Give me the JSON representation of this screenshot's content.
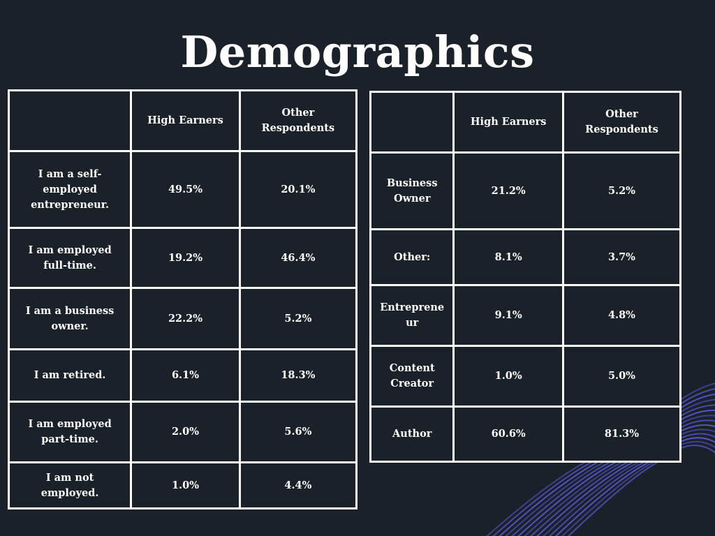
{
  "slide": {
    "title": "Demographics",
    "colors": {
      "background": "#1b2128",
      "accent": "#5a5ce0",
      "text": "#ffffff"
    }
  },
  "chart_data": [
    {
      "type": "table",
      "columns": [
        "",
        "High Earners",
        "Other Respondents"
      ],
      "rows": [
        {
          "label": "I am a self-employed entrepreneur.",
          "high_earners": "49.5%",
          "other_respondents": "20.1%"
        },
        {
          "label": "I am employed full-time.",
          "high_earners": "19.2%",
          "other_respondents": "46.4%"
        },
        {
          "label": "I am a business owner.",
          "high_earners": "22.2%",
          "other_respondents": "5.2%"
        },
        {
          "label": "I am retired.",
          "high_earners": "6.1%",
          "other_respondents": "18.3%"
        },
        {
          "label": "I am employed part-time.",
          "high_earners": "2.0%",
          "other_respondents": "5.6%"
        },
        {
          "label": "I am not employed.",
          "high_earners": "1.0%",
          "other_respondents": "4.4%"
        }
      ]
    },
    {
      "type": "table",
      "columns": [
        "",
        "High Earners",
        "Other Respondents"
      ],
      "rows": [
        {
          "label": "Business Owner",
          "high_earners": "21.2%",
          "other_respondents": "5.2%"
        },
        {
          "label": "Other:",
          "high_earners": "8.1%",
          "other_respondents": "3.7%"
        },
        {
          "label": "Entrepreneur",
          "high_earners": "9.1%",
          "other_respondents": "4.8%"
        },
        {
          "label": "Content Creator",
          "high_earners": "1.0%",
          "other_respondents": "5.0%"
        },
        {
          "label": "Author",
          "high_earners": "60.6%",
          "other_respondents": "81.3%"
        }
      ]
    }
  ]
}
